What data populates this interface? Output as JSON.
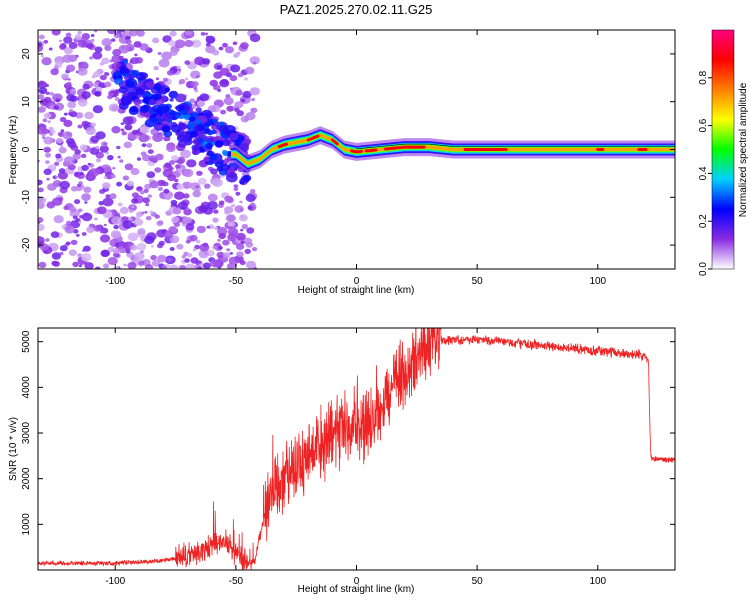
{
  "chart_data": [
    {
      "type": "heatmap",
      "title": "PAZ1.2025.270.02.11.G25",
      "xlabel": "Height of straight line (km)",
      "ylabel": "Frequency (Hz)",
      "xlim": [
        -132,
        132
      ],
      "ylim": [
        -25,
        25
      ],
      "xticks": [
        -100,
        -50,
        0,
        50,
        100
      ],
      "xtick_labels": [
        "-100",
        "-50",
        "0",
        "50",
        "100"
      ],
      "yticks": [
        20,
        10,
        0,
        -10,
        -20
      ],
      "ytick_labels": [
        "20",
        "10",
        "0",
        "-10",
        "-20"
      ],
      "ridge": {
        "height_km": [
          -50,
          -45,
          -40,
          -35,
          -30,
          -25,
          -20,
          -15,
          -10,
          -5,
          0,
          10,
          20,
          30,
          40,
          50,
          60,
          80,
          100,
          120,
          132
        ],
        "frequency_hz": [
          -1,
          -3,
          -2,
          0,
          1,
          1.5,
          2,
          3,
          2,
          0,
          -0.5,
          0,
          0.5,
          0.5,
          0,
          0,
          0,
          0,
          0,
          0,
          0
        ]
      },
      "colorbar": {
        "label": "Normalized spectral amplitude",
        "range": [
          0,
          1
        ],
        "ticks": [
          0.0,
          0.2,
          0.4,
          0.6,
          0.8
        ],
        "tick_labels": [
          "0.0",
          "0.2",
          "0.4",
          "0.6",
          "0.8"
        ],
        "colors": [
          "#ffffff",
          "#8a2be2",
          "#0000ff",
          "#00d0ff",
          "#00ff00",
          "#ffff00",
          "#ff8000",
          "#ff0000",
          "#ff0080"
        ]
      }
    },
    {
      "type": "line",
      "xlabel": "Height of straight line (km)",
      "ylabel": "SNR (10 * v/v)",
      "xlim": [
        -132,
        132
      ],
      "ylim": [
        0,
        5300
      ],
      "xticks": [
        -100,
        -50,
        0,
        50,
        100
      ],
      "xtick_labels": [
        "-100",
        "-50",
        "0",
        "50",
        "100"
      ],
      "yticks": [
        1000,
        2000,
        3000,
        4000,
        5000
      ],
      "ytick_labels": [
        "1000",
        "2000",
        "3000",
        "4000",
        "5000"
      ],
      "color": "#ee2222",
      "series": [
        {
          "name": "SNR",
          "x": [
            -132,
            -100,
            -80,
            -70,
            -60,
            -55,
            -50,
            -45,
            -42,
            -40,
            -35,
            -30,
            -25,
            -20,
            -15,
            -10,
            -5,
            0,
            5,
            10,
            15,
            20,
            25,
            30,
            35,
            40,
            50,
            60,
            70,
            80,
            90,
            100,
            110,
            120,
            121,
            121.5,
            122,
            132
          ],
          "y": [
            150,
            150,
            200,
            300,
            500,
            700,
            300,
            150,
            200,
            800,
            1800,
            2100,
            2300,
            2500,
            2700,
            2900,
            3100,
            3100,
            3300,
            3600,
            4000,
            4300,
            4600,
            4850,
            5000,
            5050,
            5050,
            5000,
            4950,
            4900,
            4850,
            4800,
            4750,
            4700,
            4600,
            3400,
            2450,
            2400
          ]
        }
      ]
    }
  ]
}
